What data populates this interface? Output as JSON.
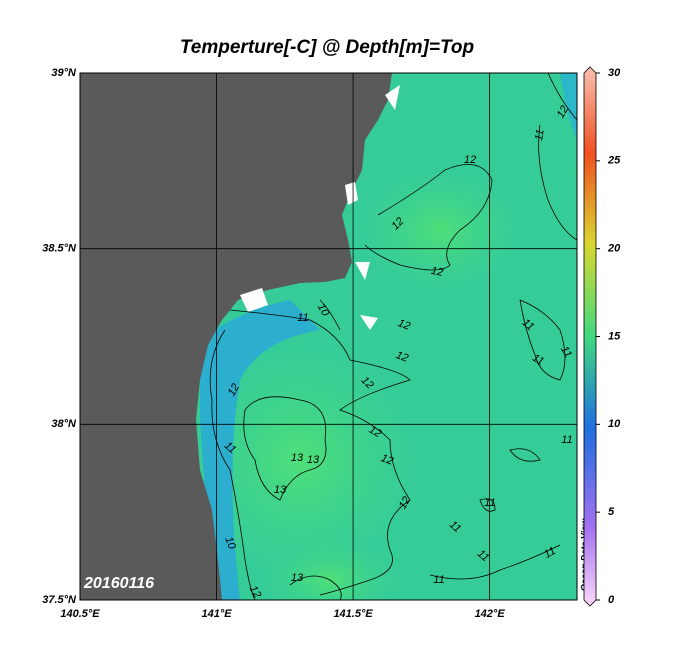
{
  "title": "Temperture[-C] @ Depth[m]=Top",
  "map": {
    "lon_range": [
      140.5,
      142.32
    ],
    "lat_range": [
      37.5,
      39
    ],
    "lon_ticks": [
      {
        "value": 140.5,
        "label": "140.5°E"
      },
      {
        "value": 141,
        "label": "141°E"
      },
      {
        "value": 141.5,
        "label": "141.5°E"
      },
      {
        "value": 142,
        "label": "142°E"
      }
    ],
    "lat_ticks": [
      {
        "value": 37.5,
        "label": "37.5°N"
      },
      {
        "value": 38,
        "label": "38°N"
      },
      {
        "value": 38.5,
        "label": "38.5°N"
      },
      {
        "value": 39,
        "label": "39°N"
      }
    ],
    "grid": true,
    "land_color": "#5a5a5a"
  },
  "colorbar": {
    "range": [
      0,
      30
    ],
    "ticks": [
      0,
      5,
      10,
      15,
      20,
      25,
      30
    ]
  },
  "contour_labels": [
    12,
    11,
    12,
    12,
    12,
    10,
    11,
    12,
    12,
    12,
    12,
    11,
    12,
    12,
    13,
    13,
    13,
    11,
    12,
    11,
    11,
    11,
    10,
    12,
    13,
    11,
    11,
    11,
    11,
    11
  ],
  "date_label": "20160116",
  "credit": "Ocean Data View"
}
